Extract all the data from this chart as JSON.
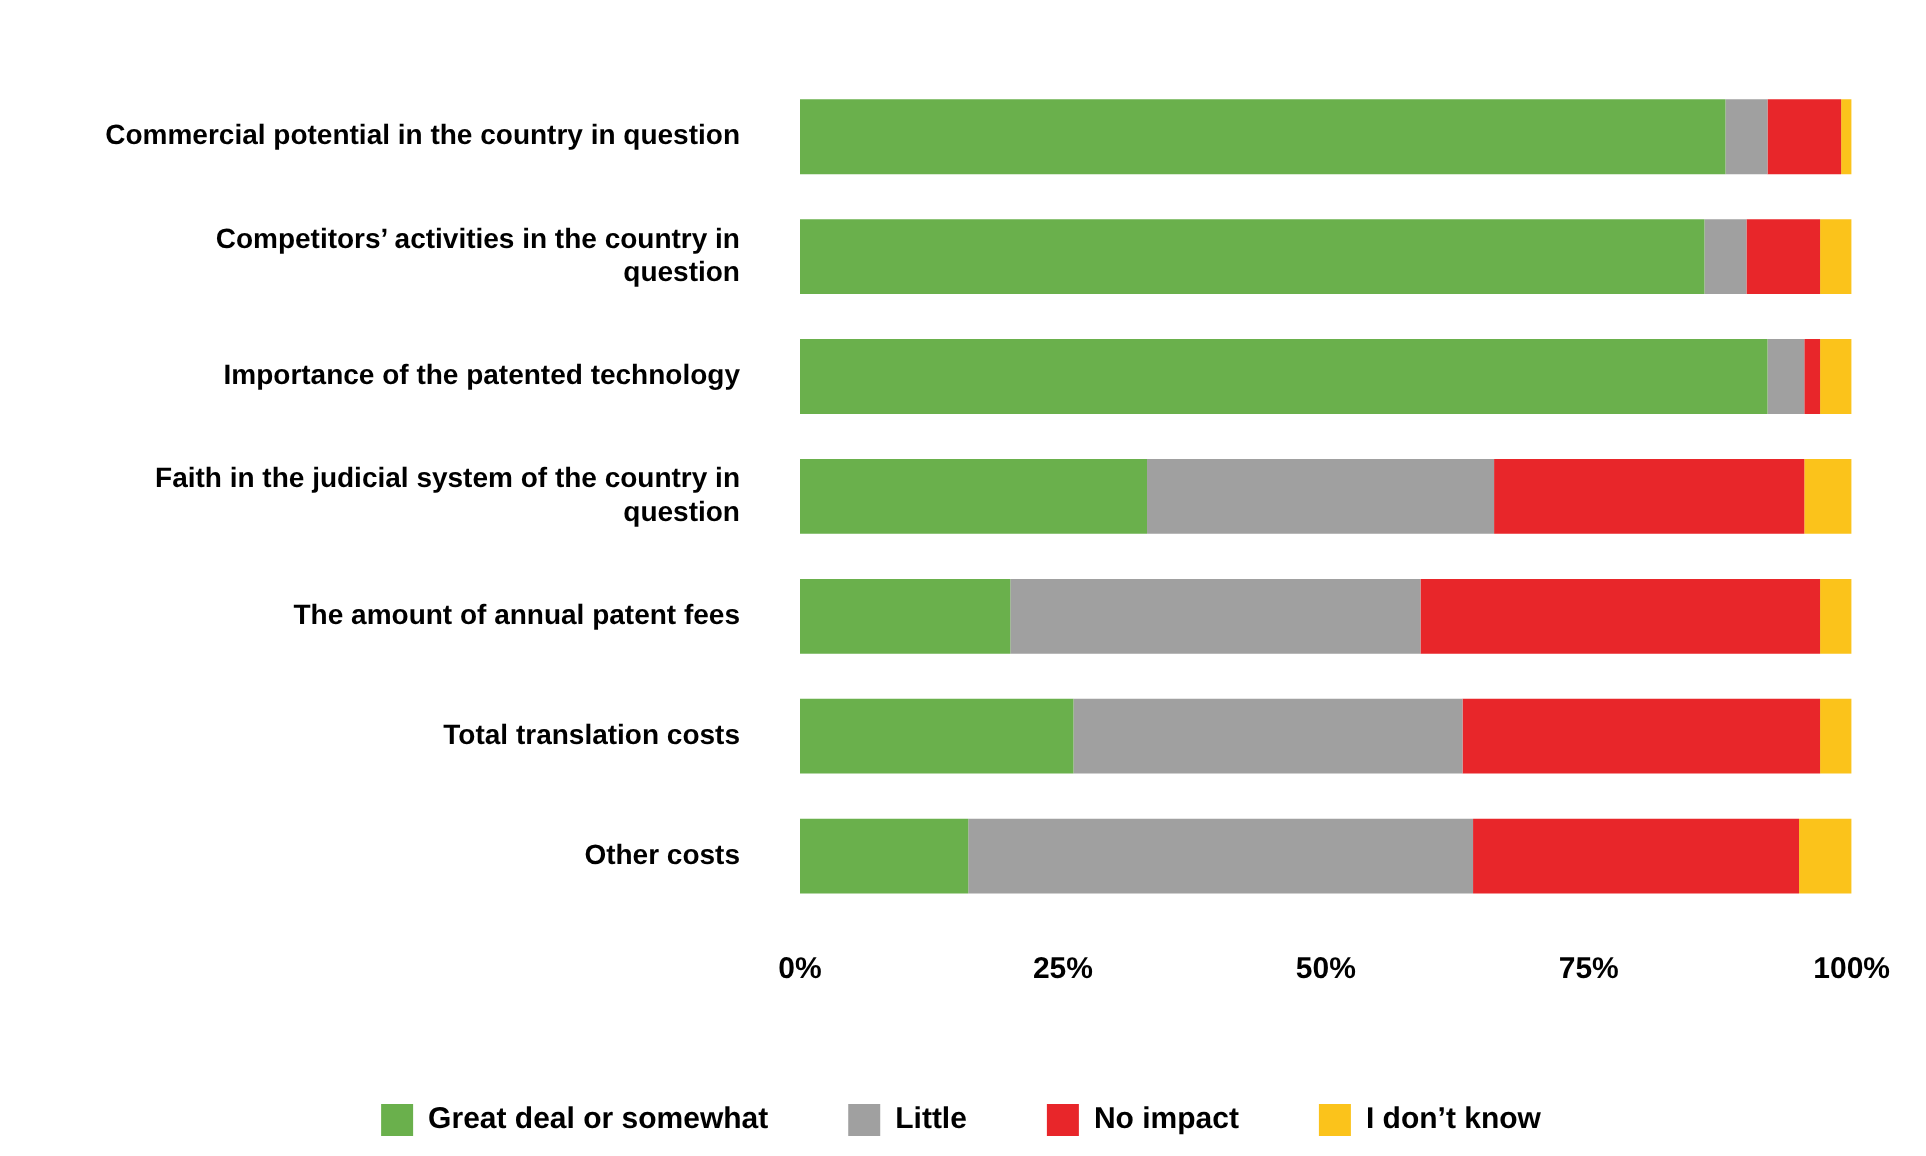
{
  "chart_data": {
    "type": "bar",
    "orientation": "horizontal",
    "stacked": true,
    "categories": [
      "Commercial potential in the country in question",
      "Competitors’ activities in the country in question",
      "Importance of the patented technology",
      "Faith in the judicial system of the country in question",
      "The amount of annual patent fees",
      "Total translation costs",
      "Other costs"
    ],
    "series": [
      {
        "name": "Great deal or somewhat",
        "color": "#6ab04c",
        "values": [
          88,
          86,
          92,
          33,
          20,
          26,
          16
        ]
      },
      {
        "name": "Little",
        "color": "#a0a0a0",
        "values": [
          4,
          4,
          3.5,
          33,
          39,
          37,
          48
        ]
      },
      {
        "name": "No impact",
        "color": "#e8262a",
        "values": [
          7,
          7,
          1.5,
          29.5,
          38,
          34,
          31
        ]
      },
      {
        "name": "I don’t know",
        "color": "#fbc31b",
        "values": [
          1,
          3,
          3,
          4.5,
          3,
          3,
          5
        ]
      }
    ],
    "xlim": [
      0,
      100
    ],
    "xticks": [
      {
        "value": 0,
        "label": "0%"
      },
      {
        "value": 25,
        "label": "25%"
      },
      {
        "value": 50,
        "label": "50%"
      },
      {
        "value": 75,
        "label": "75%"
      },
      {
        "value": 100,
        "label": "100%"
      }
    ],
    "grid": false,
    "legend": "bottom"
  }
}
